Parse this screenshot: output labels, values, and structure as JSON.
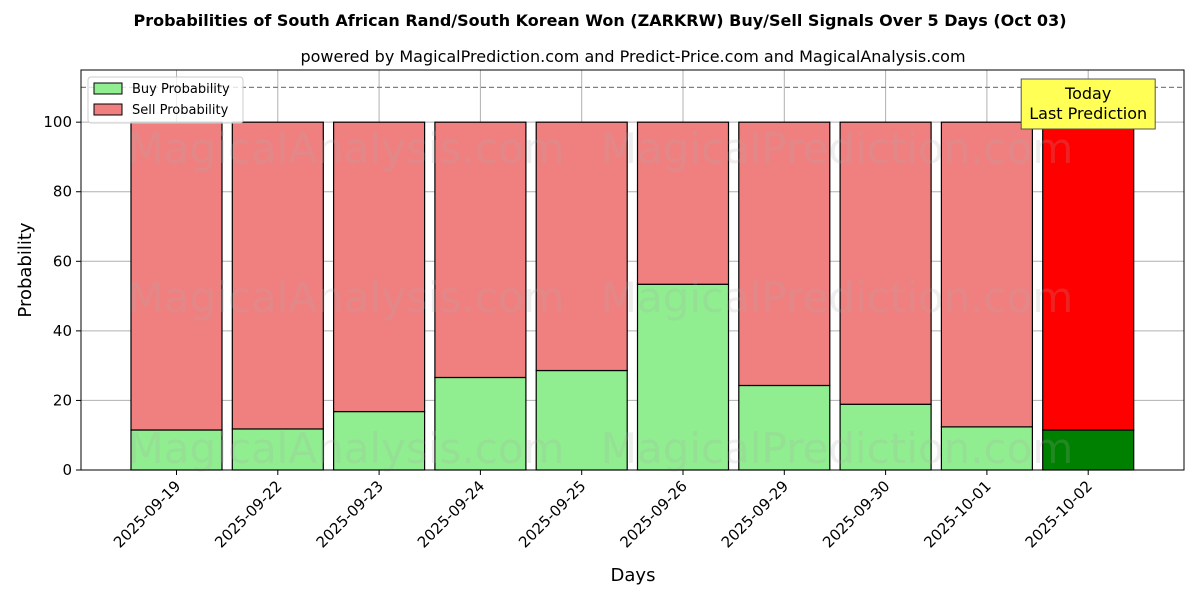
{
  "chart_data": {
    "type": "bar",
    "stacked": true,
    "title": "Probabilities of South African Rand/South Korean Won (ZARKRW) Buy/Sell Signals Over 5 Days (Oct 03)",
    "subtitle": "powered by MagicalPrediction.com and Predict-Price.com and MagicalAnalysis.com",
    "xlabel": "Days",
    "ylabel": "Probability",
    "ylim": [
      0,
      115
    ],
    "yticks": [
      0,
      20,
      40,
      60,
      80,
      100
    ],
    "grid": true,
    "reference_line": 110,
    "legend_position": "top-left",
    "categories": [
      "2025-09-19",
      "2025-09-22",
      "2025-09-23",
      "2025-09-24",
      "2025-09-25",
      "2025-09-26",
      "2025-09-29",
      "2025-09-30",
      "2025-10-01",
      "2025-10-02"
    ],
    "series": [
      {
        "name": "Buy Probability",
        "values": [
          11.5,
          11.8,
          16.8,
          26.6,
          28.6,
          53.4,
          24.3,
          18.9,
          12.4,
          11.5
        ],
        "color": "#90ee90",
        "highlight_color": "#008000"
      },
      {
        "name": "Sell Probability",
        "values": [
          88.5,
          88.2,
          83.2,
          73.4,
          71.4,
          46.6,
          75.7,
          81.1,
          87.6,
          88.5
        ],
        "color": "#f08080",
        "highlight_color": "#ff0000"
      }
    ],
    "highlight_index": 9,
    "annotation": {
      "lines": [
        "Today",
        "Last Prediction"
      ],
      "background": "#ffff55"
    },
    "watermarks": [
      "MagicalAnalysis.com",
      "MagicalPrediction.com"
    ]
  }
}
